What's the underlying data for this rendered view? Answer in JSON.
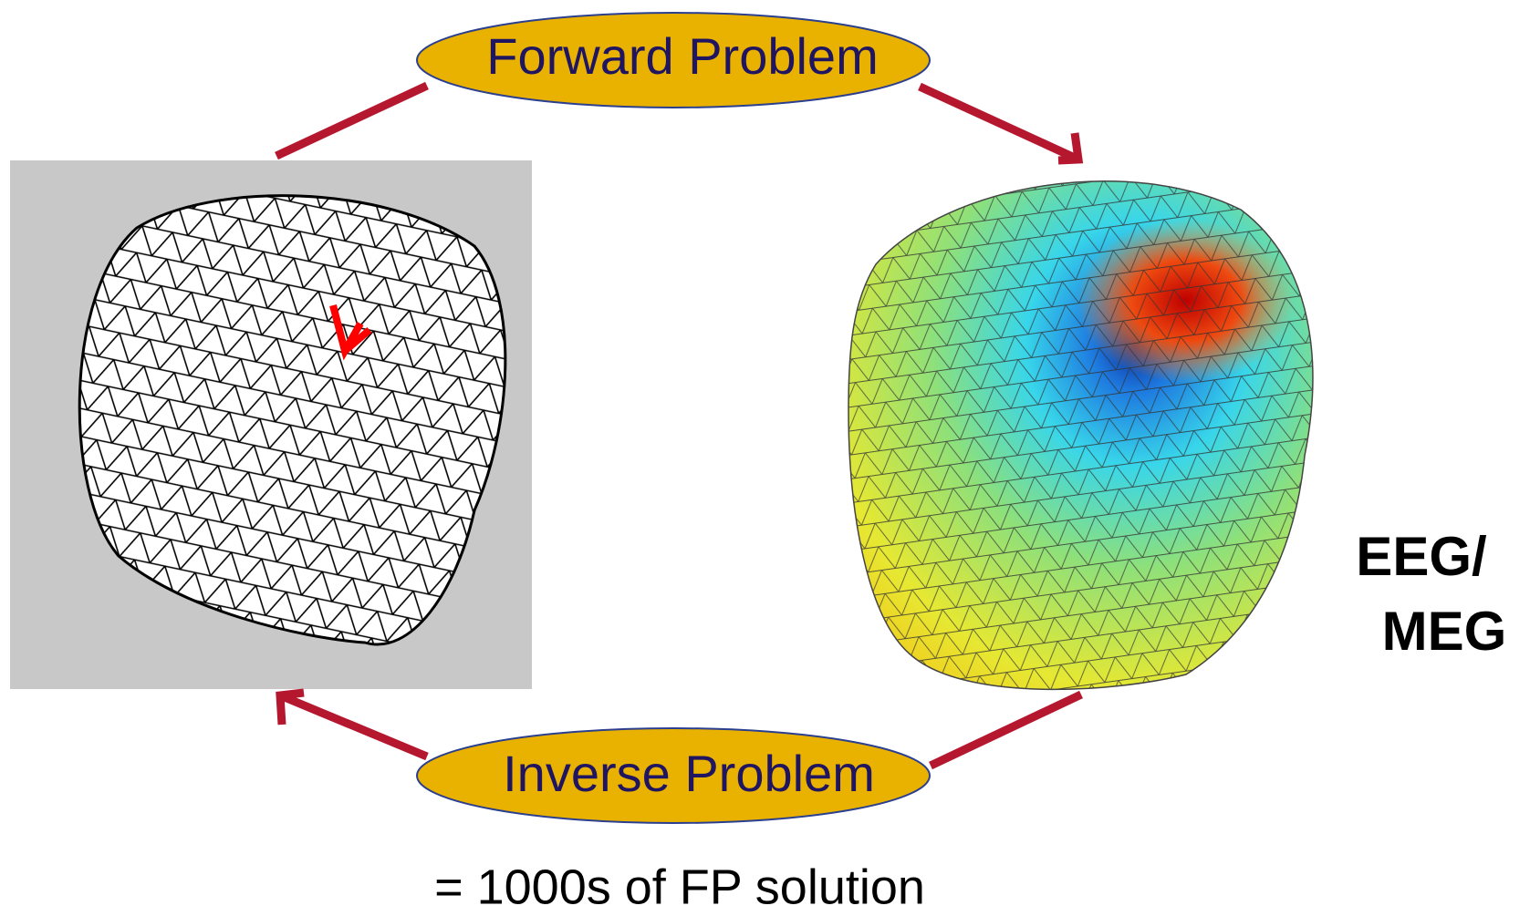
{
  "diagram": {
    "forward_problem": "Forward Problem",
    "inverse_problem": "Inverse Problem",
    "output_label": [
      "EEG/",
      "MEG"
    ],
    "footnote": "= 1000s of FP solution"
  }
}
